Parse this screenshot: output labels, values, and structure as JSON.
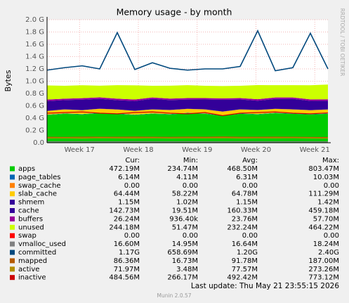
{
  "chart_data": {
    "type": "area",
    "title": "Memory usage - by month",
    "y_label": "Bytes",
    "side_text": "RRDTOOL / TOBI OETIKER",
    "x": [
      0,
      2,
      4,
      6,
      8,
      10,
      12,
      14,
      16,
      18,
      20,
      22,
      24,
      26,
      28,
      30,
      32
    ],
    "xlim": [
      0,
      32
    ],
    "xticks": [
      {
        "value": 3.7,
        "label": "Week 17"
      },
      {
        "value": 10.4,
        "label": "Week 18"
      },
      {
        "value": 17.1,
        "label": "Week 19"
      },
      {
        "value": 23.8,
        "label": "Week 20"
      },
      {
        "value": 30.5,
        "label": "Week 21"
      }
    ],
    "ylim": [
      0,
      2.0
    ],
    "yticks": [
      {
        "value": 0,
        "label": "0.0"
      },
      {
        "value": 0.2,
        "label": "0.2 G"
      },
      {
        "value": 0.4,
        "label": "0.4 G"
      },
      {
        "value": 0.6,
        "label": "0.6 G"
      },
      {
        "value": 0.8,
        "label": "0.8 G"
      },
      {
        "value": 1.0,
        "label": "1.0 G"
      },
      {
        "value": 1.2,
        "label": "1.2 G"
      },
      {
        "value": 1.4,
        "label": "1.4 G"
      },
      {
        "value": 1.6,
        "label": "1.6 G"
      },
      {
        "value": 1.8,
        "label": "1.8 G"
      },
      {
        "value": 2.0,
        "label": "2.0 G"
      }
    ],
    "grid": true,
    "stats_columns": [
      "Cur:",
      "Min:",
      "Avg:",
      "Max:"
    ],
    "series": [
      {
        "name": "apps",
        "color": "#00cc00",
        "kind": "area",
        "values": [
          0.45,
          0.47,
          0.46,
          0.48,
          0.47,
          0.45,
          0.47,
          0.46,
          0.48,
          0.47,
          0.44,
          0.47,
          0.46,
          0.48,
          0.47,
          0.46,
          0.47
        ],
        "stats": [
          "472.19M",
          "234.74M",
          "468.50M",
          "803.47M"
        ]
      },
      {
        "name": "page_tables",
        "color": "#0066b3",
        "kind": "area",
        "values": [
          0.006,
          0.006,
          0.006,
          0.006,
          0.006,
          0.006,
          0.006,
          0.006,
          0.006,
          0.006,
          0.006,
          0.006,
          0.006,
          0.006,
          0.006,
          0.006,
          0.006
        ],
        "stats": [
          "6.14M",
          "4.11M",
          "6.31M",
          "10.03M"
        ]
      },
      {
        "name": "swap_cache",
        "color": "#ff8000",
        "kind": "area",
        "values": [
          0,
          0,
          0,
          0,
          0,
          0,
          0,
          0,
          0,
          0,
          0,
          0,
          0,
          0,
          0,
          0,
          0
        ],
        "stats": [
          "0.00",
          "0.00",
          "0.00",
          "0.00"
        ]
      },
      {
        "name": "slab_cache",
        "color": "#ffcc00",
        "kind": "area",
        "values": [
          0.06,
          0.065,
          0.063,
          0.066,
          0.064,
          0.062,
          0.065,
          0.066,
          0.064,
          0.065,
          0.06,
          0.065,
          0.066,
          0.064,
          0.065,
          0.063,
          0.064
        ],
        "stats": [
          "64.44M",
          "58.22M",
          "64.78M",
          "111.29M"
        ]
      },
      {
        "name": "shmem",
        "color": "#330099",
        "kind": "area",
        "values": [
          0.0012,
          0.0012,
          0.0012,
          0.0012,
          0.0012,
          0.0012,
          0.0012,
          0.0012,
          0.0012,
          0.0012,
          0.0012,
          0.0012,
          0.0012,
          0.0012,
          0.0012,
          0.0012,
          0.0012
        ],
        "stats": [
          "1.15M",
          "1.02M",
          "1.15M",
          "1.42M"
        ]
      },
      {
        "name": "cache",
        "color": "#330099",
        "kind": "area",
        "values": [
          0.16,
          0.15,
          0.17,
          0.16,
          0.15,
          0.16,
          0.17,
          0.16,
          0.15,
          0.16,
          0.19,
          0.16,
          0.15,
          0.16,
          0.17,
          0.15,
          0.14
        ],
        "stats": [
          "142.73M",
          "19.51M",
          "160.33M",
          "459.18M"
        ]
      },
      {
        "name": "buffers",
        "color": "#990099",
        "kind": "area",
        "values": [
          0.024,
          0.024,
          0.024,
          0.024,
          0.024,
          0.024,
          0.024,
          0.024,
          0.024,
          0.024,
          0.024,
          0.024,
          0.024,
          0.024,
          0.024,
          0.024,
          0.024
        ],
        "stats": [
          "26.24M",
          "936.40k",
          "23.76M",
          "57.70M"
        ]
      },
      {
        "name": "unused",
        "color": "#ccff00",
        "kind": "area",
        "values": [
          0.23,
          0.21,
          0.21,
          0.19,
          0.22,
          0.23,
          0.19,
          0.21,
          0.21,
          0.2,
          0.2,
          0.2,
          0.23,
          0.2,
          0.2,
          0.23,
          0.24
        ],
        "stats": [
          "244.18M",
          "51.47M",
          "232.24M",
          "464.22M"
        ]
      },
      {
        "name": "swap",
        "color": "#ff0000",
        "kind": "area",
        "values": [
          0,
          0,
          0,
          0,
          0,
          0,
          0,
          0,
          0,
          0,
          0,
          0,
          0,
          0,
          0,
          0,
          0
        ],
        "stats": [
          "0.00",
          "0.00",
          "0.00",
          "0.00"
        ]
      },
      {
        "name": "vmalloc_used",
        "color": "#808080",
        "kind": "line",
        "values": [
          0.016,
          0.016,
          0.017,
          0.016,
          0.016,
          0.017,
          0.016,
          0.016,
          0.017,
          0.016,
          0.016,
          0.017,
          0.016,
          0.016,
          0.017,
          0.016,
          0.016
        ],
        "stats": [
          "16.60M",
          "14.95M",
          "16.64M",
          "18.24M"
        ]
      },
      {
        "name": "committed",
        "color": "#00487d",
        "kind": "line",
        "values": [
          1.18,
          1.22,
          1.25,
          1.2,
          1.79,
          1.19,
          1.3,
          1.21,
          1.18,
          1.2,
          1.2,
          1.24,
          1.82,
          1.17,
          1.22,
          1.78,
          1.2
        ],
        "stats": [
          "1.17G",
          "658.69M",
          "1.20G",
          "2.40G"
        ]
      },
      {
        "name": "mapped",
        "color": "#b35a00",
        "kind": "line",
        "values": [
          0.09,
          0.088,
          0.092,
          0.09,
          0.091,
          0.093,
          0.09,
          0.089,
          0.092,
          0.09,
          0.094,
          0.091,
          0.09,
          0.092,
          0.09,
          0.088,
          0.086
        ],
        "stats": [
          "86.36M",
          "16.73M",
          "91.78M",
          "187.00M"
        ]
      },
      {
        "name": "active",
        "color": "#b38f00",
        "kind": "line",
        "values": [
          0.075,
          0.078,
          0.074,
          0.08,
          0.077,
          0.076,
          0.079,
          0.075,
          0.078,
          0.077,
          0.08,
          0.076,
          0.078,
          0.077,
          0.079,
          0.076,
          0.072
        ],
        "stats": [
          "71.97M",
          "3.48M",
          "77.57M",
          "273.26M"
        ]
      },
      {
        "name": "inactive",
        "color": "#cc0000",
        "kind": "line",
        "values": [
          0.48,
          0.49,
          0.5,
          0.48,
          0.47,
          0.49,
          0.5,
          0.48,
          0.47,
          0.49,
          0.44,
          0.48,
          0.49,
          0.5,
          0.48,
          0.47,
          0.485
        ],
        "stats": [
          "484.56M",
          "266.17M",
          "492.42M",
          "773.12M"
        ]
      }
    ],
    "last_update": "Last update: Thu May 21 23:55:15 2026",
    "footer": "Munin 2.0.57"
  }
}
